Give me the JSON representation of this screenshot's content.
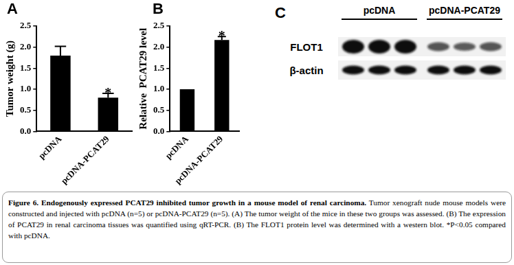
{
  "chart_data": [
    {
      "type": "bar",
      "categories": [
        "pcDNA",
        "pcDNA-PCAT29"
      ],
      "values": [
        1.8,
        0.8
      ],
      "errors": [
        0.22,
        0.1
      ],
      "y_label": "Tumor weight (g)",
      "color": "#000000",
      "ylim": [
        0,
        2.5
      ],
      "yticks": [
        {
          "value": 0,
          "label": "0.0"
        },
        0.5,
        {
          "value": 1,
          "label": "1.0"
        },
        1.5,
        {
          "value": 2,
          "label": "2.0"
        },
        2.5
      ],
      "grid": false,
      "annotations": [
        {
          "category": "pcDNA-PCAT29",
          "text": "*"
        }
      ]
    },
    {
      "type": "bar",
      "categories": [
        "pcDNA",
        "pcDNA-PCAT29"
      ],
      "values": [
        1.0,
        2.17
      ],
      "errors": [
        null,
        0.08
      ],
      "y_label": "Relative  PCAT29 level",
      "color": "#000000",
      "ylim": [
        0,
        2.5
      ],
      "yticks": [
        {
          "value": 0,
          "label": "0.0"
        },
        0.5,
        {
          "value": 1,
          "label": "1.0"
        },
        1.5,
        {
          "value": 2,
          "label": "2.0"
        },
        2.5
      ],
      "grid": false,
      "annotations": [
        {
          "category": "pcDNA-PCAT29",
          "text": "*"
        }
      ]
    }
  ],
  "panel_letters": [
    "A",
    "B",
    "C"
  ],
  "blot": {
    "groups": [
      {
        "label": "pcDNA",
        "lanes": 3
      },
      {
        "label": "pcDNA-PCAT29",
        "lanes": 3
      }
    ],
    "rows": [
      {
        "label": "FLOT1",
        "intensities": [
          1,
          1,
          1,
          0.45,
          0.4,
          0.45
        ]
      },
      {
        "label": "β-actin",
        "intensities": [
          1,
          1,
          1,
          1,
          1,
          1
        ]
      }
    ]
  },
  "caption": {
    "title": "Figure 6. Endogenously expressed PCAT29 inhibited tumor growth in a mouse model of renal carcinoma.",
    "text": "Tumor xenograft nude mouse models were constructed and injected with pcDNA (n=5) or pcDNA-PCAT29 (n=5). (A) The tumor weight of the mice in these two groups was assessed. (B) The expression of PCAT29 in renal carcinoma tissues was quantified using qRT-PCR. (B) The FLOT1 protein level was determined with a western blot. *P<0.05 compared with pcDNA."
  }
}
